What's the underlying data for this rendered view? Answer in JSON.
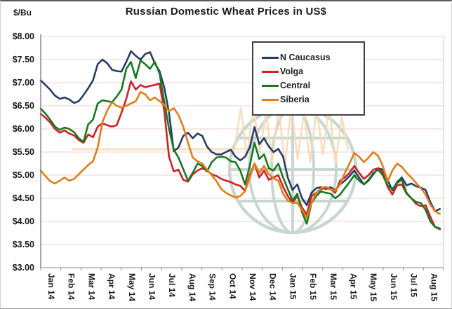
{
  "chart_data": {
    "type": "line",
    "title": "Russian Domestic Wheat Prices in US$",
    "ylabel": "$/Bu",
    "xlabel": "",
    "ylim": [
      3.0,
      8.0
    ],
    "y_tick_step": 0.5,
    "y_tick_labels": [
      "$8.00",
      "$7.50",
      "$7.00",
      "$6.50",
      "$6.00",
      "$5.50",
      "$5.00",
      "$4.50",
      "$4.00",
      "$3.50",
      "$3.00"
    ],
    "x_tick_labels": [
      "Jan 14",
      "Feb 14",
      "Mar 14",
      "Apr 14",
      "May 14",
      "Jun 14",
      "Jul 14",
      "Aug 14",
      "Sep 14",
      "Oct 14",
      "Nov 14",
      "Dec 14",
      "Jan 15",
      "Feb 15",
      "Mar 15",
      "Apr 15",
      "May 15",
      "Jun 15",
      "Jul 15",
      "Aug 15"
    ],
    "x_frequency": "weekly",
    "grid": "horizontal",
    "gridline_color": "#efd2cc",
    "legend_position": "top-right",
    "series": [
      {
        "name": "N Caucasus",
        "color": "#253e66",
        "values": [
          7.05,
          6.95,
          6.85,
          6.72,
          6.65,
          6.68,
          6.64,
          6.56,
          6.6,
          6.73,
          6.88,
          7.05,
          7.4,
          7.5,
          7.42,
          7.28,
          7.25,
          7.24,
          7.45,
          7.68,
          7.58,
          7.5,
          7.62,
          7.66,
          7.42,
          7.25,
          6.9,
          6.35,
          5.52,
          5.6,
          5.85,
          5.92,
          5.8,
          5.9,
          5.85,
          5.62,
          5.5,
          5.45,
          5.45,
          5.5,
          5.55,
          5.4,
          5.32,
          5.4,
          5.6,
          6.04,
          5.67,
          5.8,
          5.62,
          5.5,
          5.57,
          5.4,
          4.95,
          4.68,
          4.8,
          4.5,
          4.35,
          4.62,
          4.72,
          4.74,
          4.7,
          4.74,
          4.67,
          4.8,
          4.88,
          4.98,
          5.1,
          4.95,
          4.8,
          4.88,
          5.02,
          5.15,
          5.12,
          4.9,
          4.67,
          4.85,
          4.95,
          4.78,
          4.82,
          4.76,
          4.73,
          4.68,
          4.42,
          4.22,
          4.27
        ]
      },
      {
        "name": "Volga",
        "color": "#d22027",
        "values": [
          6.33,
          6.24,
          6.14,
          6.0,
          5.92,
          5.97,
          5.9,
          5.86,
          5.76,
          5.7,
          5.88,
          5.82,
          6.05,
          6.12,
          6.08,
          6.05,
          6.08,
          6.35,
          6.65,
          7.03,
          6.85,
          6.95,
          6.9,
          6.93,
          6.95,
          6.98,
          6.4,
          5.4,
          5.08,
          5.12,
          4.9,
          4.86,
          5.02,
          5.1,
          5.15,
          5.1,
          5.02,
          4.98,
          4.92,
          4.88,
          4.85,
          4.8,
          4.77,
          4.66,
          5.0,
          5.25,
          4.95,
          5.1,
          4.9,
          4.95,
          5.0,
          4.75,
          4.55,
          4.4,
          4.55,
          4.3,
          4.15,
          4.55,
          4.62,
          4.7,
          4.72,
          4.7,
          4.62,
          4.88,
          4.95,
          5.05,
          5.2,
          5.05,
          4.92,
          5.0,
          5.12,
          5.15,
          5.05,
          4.75,
          4.58,
          4.78,
          4.8,
          4.6,
          4.5,
          4.38,
          4.33,
          4.35,
          4.1,
          3.88,
          3.83
        ]
      },
      {
        "name": "Central",
        "color": "#177a1f",
        "values": [
          6.44,
          6.33,
          6.2,
          6.05,
          5.98,
          6.03,
          6.0,
          5.93,
          5.8,
          5.72,
          6.1,
          6.2,
          6.55,
          6.62,
          6.6,
          6.58,
          6.7,
          6.85,
          7.3,
          7.45,
          7.1,
          7.48,
          7.4,
          7.3,
          7.45,
          7.2,
          6.6,
          6.0,
          5.55,
          5.38,
          5.13,
          4.88,
          5.05,
          5.25,
          5.2,
          5.08,
          5.28,
          5.38,
          5.4,
          5.38,
          5.3,
          5.28,
          5.1,
          4.8,
          5.2,
          5.7,
          5.35,
          5.45,
          5.15,
          5.1,
          5.25,
          4.95,
          4.7,
          4.45,
          4.6,
          4.2,
          3.95,
          4.4,
          4.55,
          4.65,
          4.62,
          4.6,
          4.5,
          4.58,
          4.72,
          4.85,
          5.0,
          4.88,
          4.8,
          4.9,
          5.05,
          5.12,
          5.0,
          4.78,
          4.7,
          4.83,
          4.9,
          4.62,
          4.5,
          4.42,
          4.4,
          4.25,
          4.0,
          3.88,
          3.85
        ]
      },
      {
        "name": "Siberia",
        "color": "#e37d16",
        "values": [
          5.1,
          4.98,
          4.87,
          4.82,
          4.88,
          4.95,
          4.88,
          4.92,
          5.02,
          5.12,
          5.22,
          5.3,
          5.6,
          6.15,
          6.4,
          6.58,
          6.5,
          6.46,
          6.5,
          6.55,
          6.6,
          6.8,
          6.75,
          6.62,
          6.68,
          6.6,
          6.52,
          6.38,
          6.45,
          6.3,
          6.05,
          5.7,
          5.38,
          5.3,
          5.25,
          5.12,
          5.0,
          4.87,
          4.7,
          4.62,
          4.56,
          4.52,
          4.55,
          4.65,
          4.95,
          5.25,
          5.05,
          5.2,
          5.02,
          4.93,
          4.88,
          4.6,
          4.45,
          4.4,
          4.4,
          4.25,
          4.08,
          4.4,
          4.62,
          4.72,
          4.75,
          4.7,
          4.66,
          4.8,
          5.05,
          5.25,
          5.48,
          5.4,
          5.28,
          5.38,
          5.5,
          5.42,
          5.2,
          4.86,
          5.1,
          5.25,
          5.18,
          5.05,
          4.95,
          4.83,
          4.72,
          4.58,
          4.36,
          4.22,
          4.16
        ]
      }
    ]
  },
  "watermark": {
    "globe_color": "#b9cfc4",
    "zigzag_color": "#f7d4ab"
  }
}
